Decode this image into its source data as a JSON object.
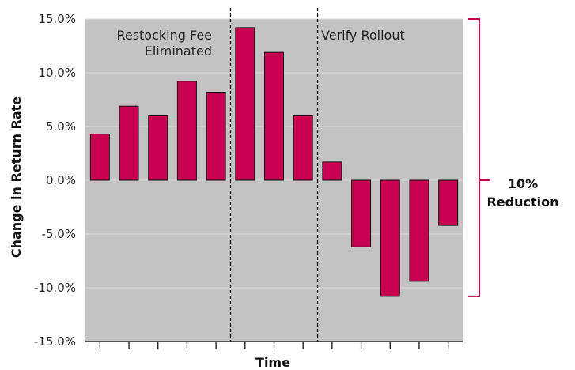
{
  "chart_data": {
    "type": "bar",
    "xlabel": "Time",
    "ylabel": "Change in Return Rate",
    "ylim": [
      -15,
      15
    ],
    "yticks": [
      15,
      10,
      5,
      0,
      -5,
      -10,
      -15
    ],
    "ytick_labels": [
      "15.0%",
      "10.0%",
      "5.0%",
      "0.0%",
      "-5.0%",
      "-10.0%",
      "-15.0%"
    ],
    "values": [
      4.3,
      6.9,
      6.0,
      9.2,
      8.2,
      14.2,
      11.9,
      6.0,
      1.7,
      -6.2,
      -10.8,
      -9.4,
      -4.2
    ],
    "grid": "horizontal",
    "annotations": [
      {
        "text_lines": [
          "Restocking Fee",
          "Eliminated"
        ],
        "after_bar_index": 4
      },
      {
        "text_lines": [
          "Verify Rollout"
        ],
        "after_bar_index": 7
      }
    ],
    "bracket": {
      "from": 15,
      "to": -10.8,
      "text_lines": [
        "10%",
        "Reduction"
      ]
    },
    "colors": {
      "bar": "#c8004f",
      "plot_background": "#c3c3c3",
      "bracket": "#c8004f"
    }
  }
}
